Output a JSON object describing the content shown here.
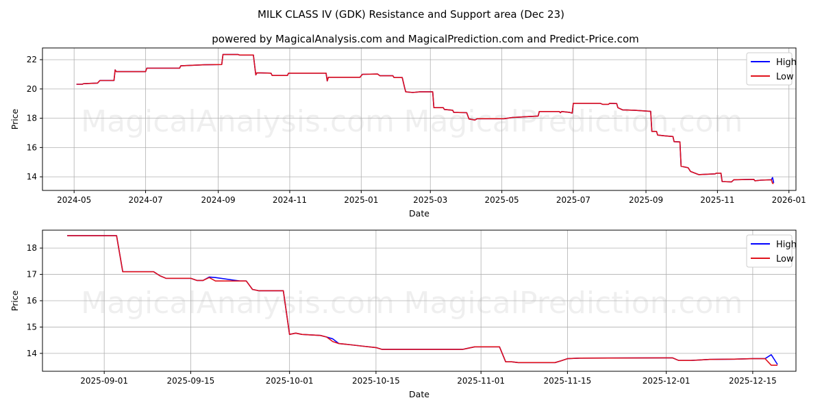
{
  "title": "MILK CLASS IV (GDK) Resistance and Support area (Dec 23)",
  "subtitle": "powered by MagicalAnalysis.com and MagicalPrediction.com and Predict-Price.com",
  "watermarks": [
    "MagicalAnalysis.com",
    "MagicalPrediction.com"
  ],
  "colors": {
    "High": "#0000ff",
    "Low": "#e0101a"
  },
  "chart_data": [
    {
      "type": "line",
      "xlabel": "Date",
      "ylabel": "Price",
      "xlim": [
        "2024-04-04",
        "2026-01-07"
      ],
      "ylim": [
        13.07,
        22.8
      ],
      "grid": true,
      "legend": "top-right",
      "legend_entries": [
        "High",
        "Low"
      ],
      "xticks": [
        {
          "date": "2024-05-01",
          "label": "2024-05"
        },
        {
          "date": "2024-07-01",
          "label": "2024-07"
        },
        {
          "date": "2024-09-01",
          "label": "2024-09"
        },
        {
          "date": "2024-11-01",
          "label": "2024-11"
        },
        {
          "date": "2025-01-01",
          "label": "2025-01"
        },
        {
          "date": "2025-03-01",
          "label": "2025-03"
        },
        {
          "date": "2025-05-01",
          "label": "2025-05"
        },
        {
          "date": "2025-07-01",
          "label": "2025-07"
        },
        {
          "date": "2025-09-01",
          "label": "2025-09"
        },
        {
          "date": "2025-11-01",
          "label": "2025-11"
        },
        {
          "date": "2026-01-01",
          "label": "2026-01"
        }
      ],
      "yticks": [
        {
          "v": 14,
          "label": "14"
        },
        {
          "v": 16,
          "label": "16"
        },
        {
          "v": 18,
          "label": "18"
        },
        {
          "v": 20,
          "label": "20"
        },
        {
          "v": 22,
          "label": "22"
        }
      ],
      "base": [
        [
          "2024-05-03",
          20.32
        ],
        [
          "2024-05-08",
          20.32
        ],
        [
          "2024-05-09",
          20.36
        ],
        [
          "2024-05-21",
          20.4
        ],
        [
          "2024-05-23",
          20.58
        ],
        [
          "2024-06-04",
          20.58
        ],
        [
          "2024-06-05",
          21.3
        ],
        [
          "2024-06-06",
          21.18
        ],
        [
          "2024-07-01",
          21.18
        ],
        [
          "2024-07-02",
          21.42
        ],
        [
          "2024-07-30",
          21.42
        ],
        [
          "2024-07-31",
          21.58
        ],
        [
          "2024-08-20",
          21.65
        ],
        [
          "2024-09-04",
          21.67
        ],
        [
          "2024-09-05",
          22.35
        ],
        [
          "2024-09-18",
          22.35
        ],
        [
          "2024-09-19",
          22.32
        ],
        [
          "2024-10-01",
          22.32
        ],
        [
          "2024-10-03",
          20.96
        ],
        [
          "2024-10-04",
          21.1
        ],
        [
          "2024-10-16",
          21.08
        ],
        [
          "2024-10-17",
          20.92
        ],
        [
          "2024-10-30",
          20.92
        ],
        [
          "2024-10-31",
          21.08
        ],
        [
          "2024-12-02",
          21.08
        ],
        [
          "2024-12-03",
          20.55
        ],
        [
          "2024-12-04",
          20.8
        ],
        [
          "2024-12-31",
          20.8
        ],
        [
          "2025-01-02",
          21.0
        ],
        [
          "2025-01-15",
          21.02
        ],
        [
          "2025-01-17",
          20.9
        ],
        [
          "2025-01-28",
          20.9
        ],
        [
          "2025-01-29",
          20.78
        ],
        [
          "2025-02-05",
          20.78
        ],
        [
          "2025-02-07",
          20.1
        ],
        [
          "2025-02-08",
          19.8
        ],
        [
          "2025-02-14",
          19.76
        ],
        [
          "2025-02-20",
          19.8
        ],
        [
          "2025-03-03",
          19.8
        ],
        [
          "2025-03-04",
          18.72
        ],
        [
          "2025-03-12",
          18.72
        ],
        [
          "2025-03-13",
          18.6
        ],
        [
          "2025-03-20",
          18.55
        ],
        [
          "2025-03-21",
          18.4
        ],
        [
          "2025-04-01",
          18.38
        ],
        [
          "2025-04-03",
          17.95
        ],
        [
          "2025-04-08",
          17.88
        ],
        [
          "2025-04-10",
          17.97
        ],
        [
          "2025-05-03",
          17.97
        ],
        [
          "2025-05-10",
          18.05
        ],
        [
          "2025-06-01",
          18.15
        ],
        [
          "2025-06-02",
          18.46
        ],
        [
          "2025-06-19",
          18.46
        ],
        [
          "2025-06-20",
          18.38
        ],
        [
          "2025-06-21",
          18.46
        ],
        [
          "2025-06-28",
          18.4
        ],
        [
          "2025-06-30",
          18.35
        ],
        [
          "2025-07-01",
          19.02
        ],
        [
          "2025-07-24",
          19.02
        ],
        [
          "2025-07-26",
          18.95
        ],
        [
          "2025-07-31",
          18.95
        ],
        [
          "2025-08-01",
          19.02
        ],
        [
          "2025-08-07",
          19.0
        ],
        [
          "2025-08-08",
          18.72
        ],
        [
          "2025-08-12",
          18.57
        ],
        [
          "2025-08-22",
          18.55
        ],
        [
          "2025-09-05",
          18.47
        ],
        [
          "2025-09-06",
          17.1
        ],
        [
          "2025-09-10",
          17.1
        ],
        [
          "2025-09-11",
          16.85
        ],
        [
          "2025-09-17",
          16.8
        ],
        [
          "2025-09-24",
          16.75
        ],
        [
          "2025-09-25",
          16.4
        ],
        [
          "2025-09-30",
          16.38
        ],
        [
          "2025-10-01",
          14.72
        ],
        [
          "2025-10-07",
          14.62
        ],
        [
          "2025-10-09",
          14.37
        ],
        [
          "2025-10-16",
          14.15
        ],
        [
          "2025-10-30",
          14.2
        ],
        [
          "2025-10-31",
          14.25
        ],
        [
          "2025-11-04",
          14.25
        ],
        [
          "2025-11-05",
          13.68
        ],
        [
          "2025-11-13",
          13.65
        ],
        [
          "2025-11-15",
          13.8
        ],
        [
          "2025-12-02",
          13.83
        ],
        [
          "2025-12-03",
          13.73
        ],
        [
          "2025-12-08",
          13.77
        ],
        [
          "2025-12-17",
          13.8
        ]
      ],
      "series": [
        {
          "name": "High",
          "values_tail": [
            [
              "2025-12-18",
              13.95
            ],
            [
              "2025-12-19",
              13.58
            ]
          ]
        },
        {
          "name": "Low",
          "values_tail": [
            [
              "2025-12-18",
              13.55
            ],
            [
              "2025-12-19",
              13.55
            ]
          ]
        }
      ]
    },
    {
      "type": "line",
      "xlabel": "Date",
      "ylabel": "Price",
      "xlim": [
        "2025-08-22",
        "2025-12-22"
      ],
      "ylim": [
        13.32,
        18.68
      ],
      "grid": true,
      "legend": "top-right",
      "legend_entries": [
        "High",
        "Low"
      ],
      "xticks": [
        {
          "date": "2025-09-01",
          "label": "2025-09-01"
        },
        {
          "date": "2025-09-15",
          "label": "2025-09-15"
        },
        {
          "date": "2025-10-01",
          "label": "2025-10-01"
        },
        {
          "date": "2025-10-15",
          "label": "2025-10-15"
        },
        {
          "date": "2025-11-01",
          "label": "2025-11-01"
        },
        {
          "date": "2025-11-15",
          "label": "2025-11-15"
        },
        {
          "date": "2025-12-01",
          "label": "2025-12-01"
        },
        {
          "date": "2025-12-15",
          "label": "2025-12-15"
        }
      ],
      "yticks": [
        {
          "v": 14,
          "label": "14"
        },
        {
          "v": 15,
          "label": "15"
        },
        {
          "v": 16,
          "label": "16"
        },
        {
          "v": 17,
          "label": "17"
        },
        {
          "v": 18,
          "label": "18"
        }
      ],
      "series": [
        {
          "name": "High",
          "values": [
            [
              "2025-08-26",
              18.47
            ],
            [
              "2025-09-03",
              18.47
            ],
            [
              "2025-09-04",
              17.1
            ],
            [
              "2025-09-09",
              17.1
            ],
            [
              "2025-09-10",
              16.95
            ],
            [
              "2025-09-11",
              16.85
            ],
            [
              "2025-09-15",
              16.85
            ],
            [
              "2025-09-16",
              16.77
            ],
            [
              "2025-09-17",
              16.77
            ],
            [
              "2025-09-18",
              16.9
            ],
            [
              "2025-09-19",
              16.88
            ],
            [
              "2025-09-22",
              16.78
            ],
            [
              "2025-09-23",
              16.75
            ],
            [
              "2025-09-24",
              16.75
            ],
            [
              "2025-09-25",
              16.43
            ],
            [
              "2025-09-26",
              16.38
            ],
            [
              "2025-09-30",
              16.38
            ],
            [
              "2025-10-01",
              14.72
            ],
            [
              "2025-10-02",
              14.77
            ],
            [
              "2025-10-03",
              14.72
            ],
            [
              "2025-10-06",
              14.68
            ],
            [
              "2025-10-07",
              14.62
            ],
            [
              "2025-10-08",
              14.55
            ],
            [
              "2025-10-09",
              14.37
            ],
            [
              "2025-10-10",
              14.35
            ],
            [
              "2025-10-13",
              14.27
            ],
            [
              "2025-10-15",
              14.22
            ],
            [
              "2025-10-16",
              14.15
            ],
            [
              "2025-10-29",
              14.15
            ],
            [
              "2025-10-30",
              14.2
            ],
            [
              "2025-10-31",
              14.25
            ],
            [
              "2025-11-04",
              14.25
            ],
            [
              "2025-11-05",
              13.68
            ],
            [
              "2025-11-06",
              13.68
            ],
            [
              "2025-11-07",
              13.65
            ],
            [
              "2025-11-13",
              13.65
            ],
            [
              "2025-11-14",
              13.72
            ],
            [
              "2025-11-15",
              13.8
            ],
            [
              "2025-11-17",
              13.82
            ],
            [
              "2025-12-01",
              13.83
            ],
            [
              "2025-12-02",
              13.83
            ],
            [
              "2025-12-03",
              13.73
            ],
            [
              "2025-12-05",
              13.73
            ],
            [
              "2025-12-08",
              13.77
            ],
            [
              "2025-12-12",
              13.78
            ],
            [
              "2025-12-15",
              13.8
            ],
            [
              "2025-12-17",
              13.8
            ],
            [
              "2025-12-18",
              13.95
            ],
            [
              "2025-12-19",
              13.58
            ]
          ]
        },
        {
          "name": "Low",
          "values": [
            [
              "2025-08-26",
              18.47
            ],
            [
              "2025-09-03",
              18.47
            ],
            [
              "2025-09-04",
              17.1
            ],
            [
              "2025-09-09",
              17.1
            ],
            [
              "2025-09-10",
              16.95
            ],
            [
              "2025-09-11",
              16.85
            ],
            [
              "2025-09-15",
              16.85
            ],
            [
              "2025-09-16",
              16.77
            ],
            [
              "2025-09-17",
              16.77
            ],
            [
              "2025-09-18",
              16.88
            ],
            [
              "2025-09-19",
              16.75
            ],
            [
              "2025-09-22",
              16.75
            ],
            [
              "2025-09-24",
              16.75
            ],
            [
              "2025-09-25",
              16.43
            ],
            [
              "2025-09-26",
              16.38
            ],
            [
              "2025-09-30",
              16.38
            ],
            [
              "2025-10-01",
              14.72
            ],
            [
              "2025-10-02",
              14.77
            ],
            [
              "2025-10-03",
              14.72
            ],
            [
              "2025-10-06",
              14.68
            ],
            [
              "2025-10-07",
              14.62
            ],
            [
              "2025-10-08",
              14.45
            ],
            [
              "2025-10-09",
              14.37
            ],
            [
              "2025-10-10",
              14.35
            ],
            [
              "2025-10-13",
              14.27
            ],
            [
              "2025-10-15",
              14.22
            ],
            [
              "2025-10-16",
              14.15
            ],
            [
              "2025-10-29",
              14.15
            ],
            [
              "2025-10-30",
              14.2
            ],
            [
              "2025-10-31",
              14.25
            ],
            [
              "2025-11-04",
              14.25
            ],
            [
              "2025-11-05",
              13.68
            ],
            [
              "2025-11-06",
              13.68
            ],
            [
              "2025-11-07",
              13.65
            ],
            [
              "2025-11-13",
              13.65
            ],
            [
              "2025-11-14",
              13.72
            ],
            [
              "2025-11-15",
              13.8
            ],
            [
              "2025-11-17",
              13.82
            ],
            [
              "2025-12-01",
              13.83
            ],
            [
              "2025-12-02",
              13.83
            ],
            [
              "2025-12-03",
              13.73
            ],
            [
              "2025-12-05",
              13.73
            ],
            [
              "2025-12-08",
              13.77
            ],
            [
              "2025-12-12",
              13.78
            ],
            [
              "2025-12-15",
              13.8
            ],
            [
              "2025-12-17",
              13.8
            ],
            [
              "2025-12-18",
              13.55
            ],
            [
              "2025-12-19",
              13.55
            ]
          ]
        }
      ]
    }
  ]
}
